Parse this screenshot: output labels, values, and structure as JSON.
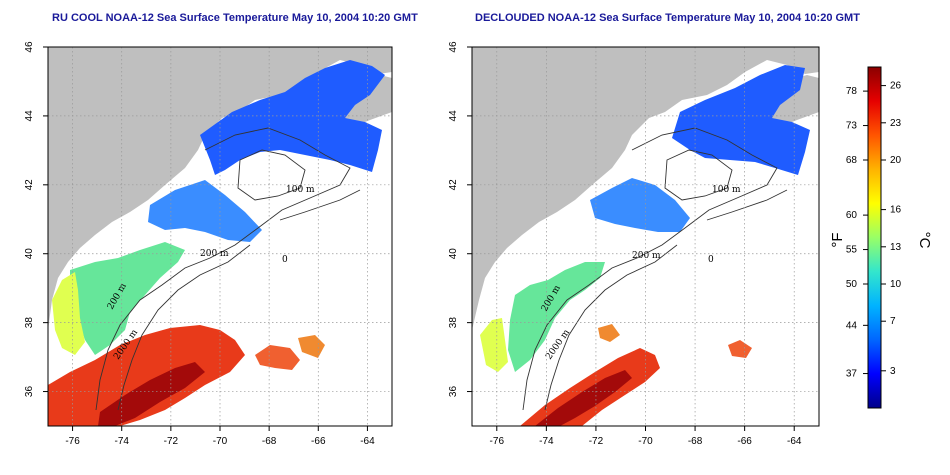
{
  "panels": [
    {
      "id": "left",
      "title": "RU COOL NOAA-12 Sea Surface Temperature May 10, 2004 10:20 GMT",
      "x_ticks": [
        "-76",
        "-74",
        "-72",
        "-70",
        "-68",
        "-66",
        "-64"
      ],
      "y_ticks": [
        "36",
        "38",
        "40",
        "42",
        "44",
        "46"
      ],
      "contour_labels": [
        "100 m",
        "200 m",
        "200 m",
        "2000 m",
        "0"
      ]
    },
    {
      "id": "right",
      "title": "DECLOUDED NOAA-12 Sea Surface Temperature May 10, 2004 10:20 GMT",
      "x_ticks": [
        "-76",
        "-74",
        "-72",
        "-70",
        "-68",
        "-66",
        "-64"
      ],
      "y_ticks": [
        "36",
        "38",
        "40",
        "42",
        "44",
        "46"
      ],
      "contour_labels": [
        "100 m",
        "200 m",
        "200 m",
        "2000 m",
        "0"
      ]
    }
  ],
  "colorbar": {
    "fahrenheit_ticks": [
      "78",
      "73",
      "68",
      "60",
      "55",
      "50",
      "44",
      "37"
    ],
    "celsius_ticks": [
      "26",
      "23",
      "20",
      "16",
      "13",
      "10",
      "7",
      "3"
    ],
    "fahrenheit_label": "°F",
    "celsius_label": "°C",
    "colors": [
      "#00008a",
      "#0000ff",
      "#0066ff",
      "#00b3ff",
      "#33e6cc",
      "#99ff66",
      "#ffff00",
      "#ffb300",
      "#ff5500",
      "#e60000",
      "#8b0000"
    ]
  },
  "map": {
    "land_color": "#bfbfbf",
    "ocean_no_data_color": "#ffffff",
    "grid_style": "dotted"
  }
}
